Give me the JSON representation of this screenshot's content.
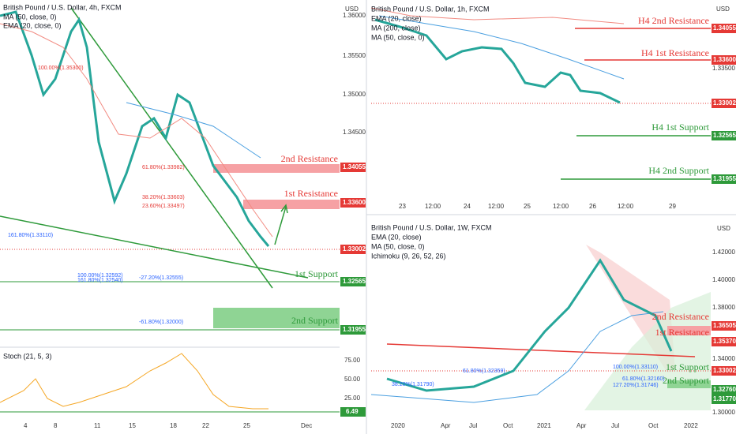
{
  "left": {
    "title": "British Pound / U.S. Dollar, 4h, FXCM",
    "indicators": [
      "MA (50, close, 0)",
      "EMA (20, close, 0)"
    ],
    "levels": [
      "2nd Resistance",
      "1st Resistance",
      "1st Support",
      "2nd Support"
    ],
    "fibs_red": [
      "100.00%(1.35300)",
      "61.80%(1.33982)",
      "38.20%(1.33603)",
      "23.60%(1.33497)"
    ],
    "fibs_blue": [
      "161.80%(1.33110)",
      "100.00%(1.32592)",
      "161.80%(1.32540)",
      "-27.20%(1.32555)",
      "-61.80%(1.32000)"
    ],
    "axis": [
      "USD",
      "1.36000",
      "1.35500",
      "1.35000",
      "1.34500"
    ],
    "tags": [
      "1.34055",
      "1.33600",
      "1.33002",
      "1.32565",
      "1.31955"
    ],
    "x_labels": [
      "4",
      "8",
      "11",
      "15",
      "18",
      "22",
      "25",
      "Dec"
    ],
    "stoch": {
      "title": "Stoch (21, 5, 3)",
      "axis": [
        "75.00",
        "50.00",
        "25.00"
      ],
      "tag": "6.49"
    }
  },
  "top_right": {
    "title": "British Pound / U.S. Dollar, 1h, FXCM",
    "indicators": [
      "EMA (20, close)",
      "MA (200, close)",
      "MA (50, close, 0)"
    ],
    "levels": [
      "H4 2nd Resistance",
      "H4 1st Resistance",
      "H4 1st Support",
      "H4 2nd Support"
    ],
    "axis": [
      "USD",
      "1.33500"
    ],
    "tags": [
      "1.34055",
      "1.33600",
      "1.33002",
      "1.32565",
      "1.31955"
    ],
    "x_labels": [
      "23",
      "12:00",
      "24",
      "12:00",
      "25",
      "12:00",
      "26",
      "12:00",
      "29"
    ]
  },
  "bottom_right": {
    "title": "British Pound / U.S. Dollar, 1W, FXCM",
    "indicators": [
      "EMA (20, close)",
      "MA (50, close, 0)",
      "Ichimoku (9, 26, 52, 26)"
    ],
    "levels": [
      "2nd Resistance",
      "1st Resistance",
      "1st Support",
      "2nd Support"
    ],
    "fibs": [
      "61.80%(1.32359)",
      "38.20%(1.31790)",
      "61.80%(1.32160)",
      "100.00%(1.33110)",
      "127.20%(1.31746)"
    ],
    "axis": [
      "USD",
      "1.42000",
      "1.40000",
      "1.38000",
      "1.34000",
      "1.30000"
    ],
    "tags": [
      "1.36505",
      "1.35370",
      "1.33002",
      "1.32760",
      "1.31770"
    ],
    "x_labels": [
      "2020",
      "Apr",
      "Jul",
      "Oct",
      "2021",
      "Apr",
      "Jul",
      "Oct",
      "2022"
    ]
  }
}
